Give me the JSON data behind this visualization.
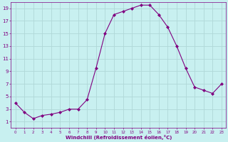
{
  "x": [
    0,
    1,
    2,
    3,
    4,
    5,
    6,
    7,
    8,
    9,
    10,
    11,
    12,
    13,
    14,
    15,
    16,
    17,
    18,
    19,
    20,
    21,
    22,
    23
  ],
  "y": [
    4.0,
    2.5,
    1.5,
    2.0,
    2.2,
    2.5,
    3.0,
    3.0,
    4.5,
    9.5,
    15.0,
    18.0,
    18.5,
    19.0,
    19.5,
    19.5,
    18.0,
    16.0,
    13.0,
    9.5,
    6.5,
    6.0,
    5.5,
    7.0
  ],
  "line_color": "#800080",
  "marker": "D",
  "marker_size": 2,
  "bg_color": "#c8f0f0",
  "grid_color": "#b0d8d8",
  "xlabel": "Windchill (Refroidissement éolien,°C)",
  "xlim": [
    -0.5,
    23.5
  ],
  "ylim": [
    0,
    20
  ],
  "xticks": [
    0,
    1,
    2,
    3,
    4,
    5,
    6,
    7,
    8,
    9,
    10,
    11,
    12,
    13,
    14,
    15,
    16,
    17,
    18,
    19,
    20,
    21,
    22,
    23
  ],
  "yticks": [
    1,
    3,
    5,
    7,
    9,
    11,
    13,
    15,
    17,
    19
  ],
  "font_color": "#800080"
}
